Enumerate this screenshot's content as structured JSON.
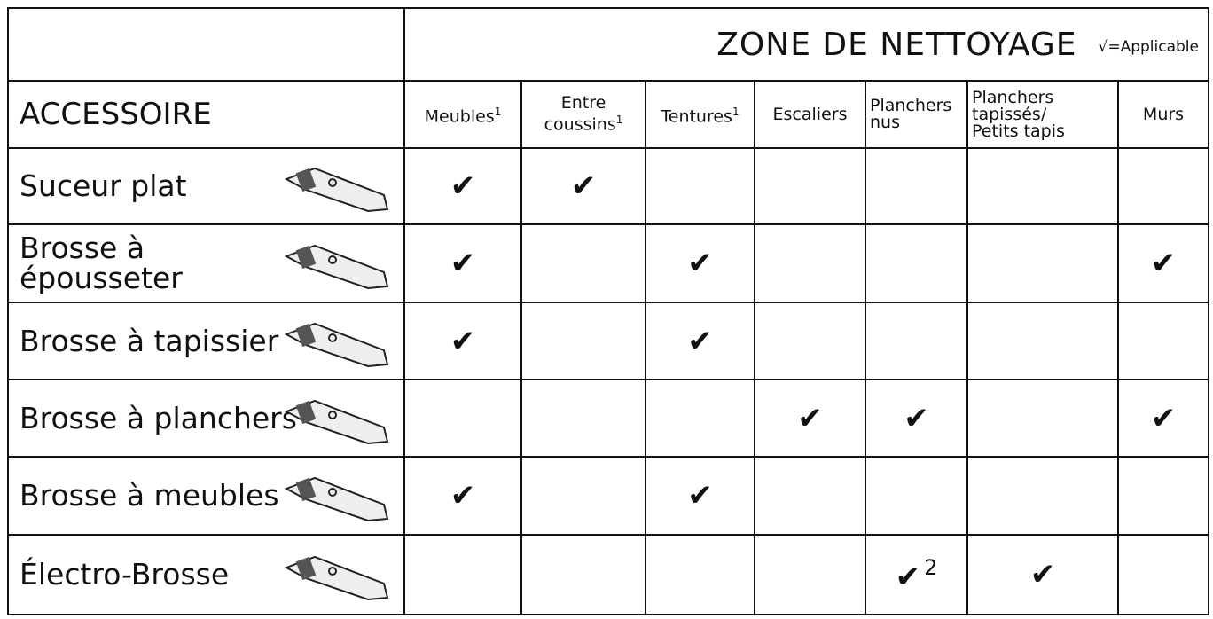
{
  "header": {
    "title": "ZONE DE NETTOYAGE",
    "legend": "√=Applicable",
    "accessory_label": "ACCESSOIRE"
  },
  "columns": [
    {
      "lines": [
        "Meubles"
      ],
      "note": "1"
    },
    {
      "lines": [
        "Entre",
        "coussins"
      ],
      "note": "1"
    },
    {
      "lines": [
        "Tentures"
      ],
      "note": "1"
    },
    {
      "lines": [
        "Escaliers"
      ]
    },
    {
      "lines": [
        "Planchers",
        "nus"
      ]
    },
    {
      "lines": [
        "Planchers",
        "tapissés/",
        "Petits tapis"
      ]
    },
    {
      "lines": [
        "Murs"
      ]
    }
  ],
  "rows": [
    {
      "lines": [
        "Suceur plat"
      ],
      "cells": [
        {
          "mark": "✔"
        },
        {
          "mark": "✔"
        },
        null,
        null,
        null,
        null,
        null
      ]
    },
    {
      "lines": [
        "Brosse à",
        "épousseter"
      ],
      "cells": [
        {
          "mark": "✔"
        },
        null,
        {
          "mark": "✔"
        },
        null,
        null,
        null,
        {
          "mark": "✔"
        }
      ]
    },
    {
      "lines": [
        "Brosse à tapissier"
      ],
      "cells": [
        {
          "mark": "✔"
        },
        null,
        {
          "mark": "✔"
        },
        null,
        null,
        null,
        null
      ]
    },
    {
      "lines": [
        "Brosse à planchers"
      ],
      "cells": [
        null,
        null,
        null,
        {
          "mark": "✔"
        },
        {
          "mark": "✔"
        },
        null,
        {
          "mark": "✔"
        }
      ]
    },
    {
      "lines": [
        "Brosse à meubles"
      ],
      "cells": [
        {
          "mark": "✔"
        },
        null,
        {
          "mark": "✔"
        },
        null,
        null,
        null,
        null
      ]
    },
    {
      "lines": [
        "Électro-Brosse"
      ],
      "cells": [
        null,
        null,
        null,
        null,
        {
          "mark": "✔",
          "note": "2"
        },
        {
          "mark": "✔"
        },
        null
      ]
    }
  ]
}
